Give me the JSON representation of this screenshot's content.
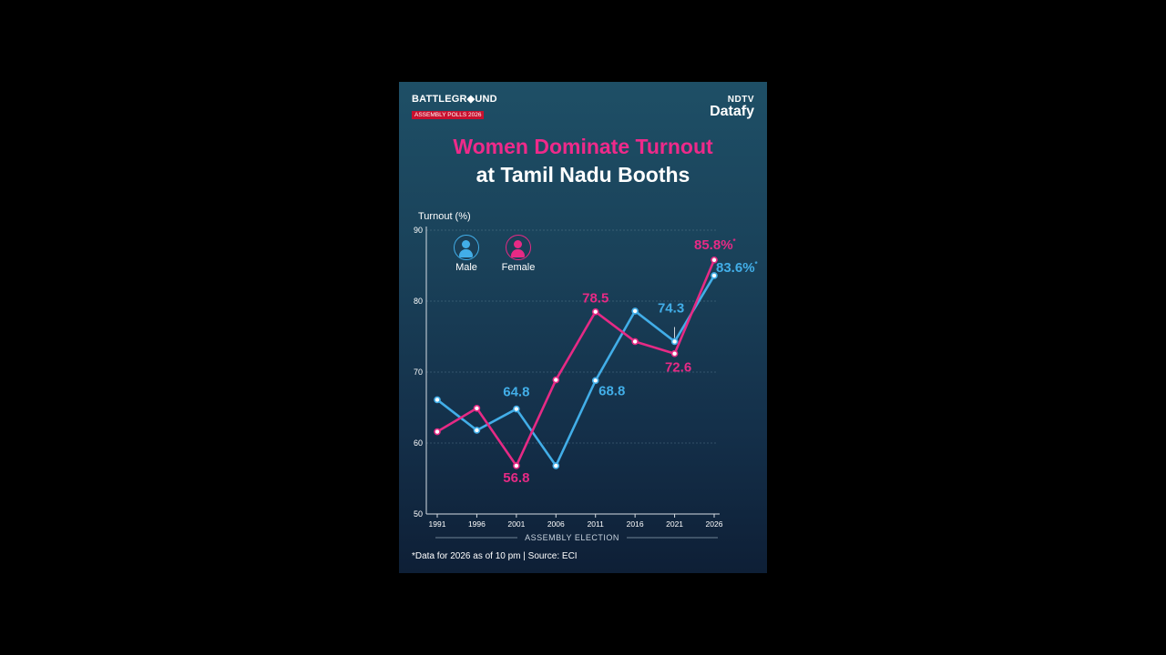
{
  "header": {
    "brand_left": "BATTLEGR◆UND",
    "brand_left_sub": "ASSEMBLY POLLS 2026",
    "brand_right_top": "NDTV",
    "brand_right_bottom": "Datafy"
  },
  "title_line1": "Women Dominate Turnout",
  "title_line2": "at Tamil Nadu Booths",
  "legend": {
    "male": "Male",
    "female": "Female"
  },
  "colors": {
    "male": "#42aee8",
    "female": "#e62a85",
    "background": "#1a425a"
  },
  "note": "*Data for 2026 as of 10 pm | Source: ECI",
  "chart_data": {
    "type": "line",
    "categories": [
      "1991",
      "1996",
      "2001",
      "2006",
      "2011",
      "2016",
      "2021",
      "2026"
    ],
    "series": [
      {
        "name": "Male",
        "values": [
          66.1,
          61.8,
          64.8,
          56.8,
          68.8,
          78.6,
          74.3,
          83.6
        ]
      },
      {
        "name": "Female",
        "values": [
          61.6,
          64.9,
          56.8,
          68.9,
          78.5,
          74.3,
          72.6,
          85.8
        ]
      }
    ],
    "data_labels": {
      "male": [
        {
          "index": 2,
          "text": "64.8"
        },
        {
          "index": 4,
          "text": "68.8"
        },
        {
          "index": 6,
          "text": "74.3"
        },
        {
          "index": 7,
          "text": "83.6%",
          "suffix": "*"
        }
      ],
      "female": [
        {
          "index": 2,
          "text": "56.8"
        },
        {
          "index": 4,
          "text": "78.5"
        },
        {
          "index": 6,
          "text": "72.6"
        },
        {
          "index": 7,
          "text": "85.8%",
          "suffix": "*"
        }
      ]
    },
    "ylabel": "Turnout (%)",
    "xlabel": "ASSEMBLY ELECTION",
    "ylim": [
      50,
      90
    ],
    "yticks": [
      "50",
      "60",
      "70",
      "80",
      "90"
    ],
    "grid": true,
    "legend_position": "top-left"
  }
}
